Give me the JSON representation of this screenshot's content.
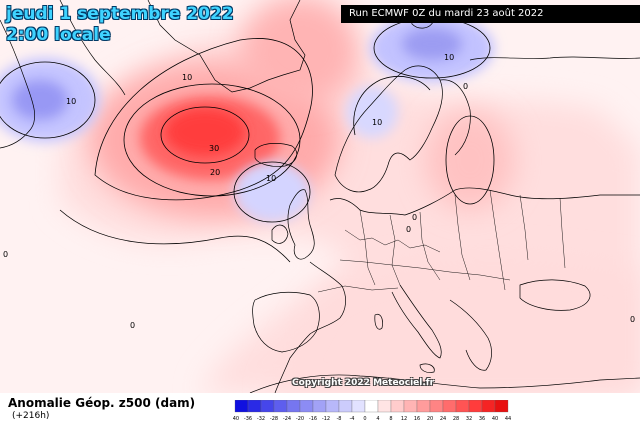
{
  "header": {
    "date_line": "jeudi 1 septembre 2022",
    "time_line": "2:00 locale",
    "run_banner": "Run ECMWF 0Z du mardi 23 août 2022"
  },
  "copyright": "Copyright 2022 Meteociel.fr",
  "footer": {
    "title": "Anomalie Géop. z500 (dam)",
    "lead_time": "(+216h)"
  },
  "colors": {
    "strong_positive": "#ff3030",
    "moderate_positive": "#ff8a8a",
    "weak_positive": "#ffc8c8",
    "faint_positive": "#ffe6e6",
    "weak_negative": "#c8c8ff",
    "strong_negative": "#7c7cf0",
    "coastline": "#000000"
  },
  "contour_labels": [
    "30",
    "20",
    "10",
    "10",
    "10",
    "10",
    "10",
    "0",
    "0",
    "0",
    "0",
    "0",
    "0"
  ],
  "legend": {
    "ticks": [
      "-40",
      "-36",
      "-32",
      "-28",
      "-24",
      "-20",
      "-16",
      "-12",
      "-8",
      "-4",
      "0",
      "4",
      "8",
      "12",
      "16",
      "20",
      "24",
      "28",
      "32",
      "36",
      "40",
      "44"
    ],
    "colors": [
      "#1010e0",
      "#2a2ae6",
      "#4646ea",
      "#5e5eee",
      "#7676f0",
      "#8c8cf4",
      "#a2a2f6",
      "#b8b8fa",
      "#ccccfc",
      "#e2e2ff",
      "#ffffff",
      "#ffe4e4",
      "#ffcccc",
      "#ffb4b4",
      "#ff9c9c",
      "#ff8484",
      "#ff6c6c",
      "#ff5454",
      "#ff3c3c",
      "#f52424",
      "#e81010"
    ]
  }
}
